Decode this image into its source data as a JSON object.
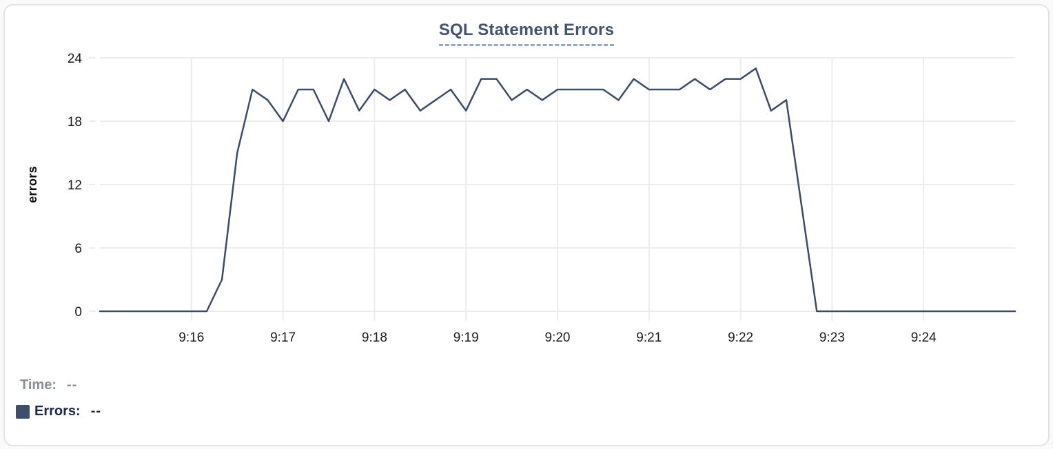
{
  "card": {
    "title": "SQL Statement Errors"
  },
  "legend": {
    "time_label": "Time:",
    "time_value": "--",
    "errors_label": "Errors:",
    "errors_value": "--"
  },
  "colors": {
    "page_bg": "#fafafa",
    "card_bg": "#ffffff",
    "card_border": "#e3e3e6",
    "title": "#44536e",
    "title_underline": "#9aa6bf",
    "grid": "#ececee",
    "axis_text": "#1b1b1d",
    "line": "#3b4c6a",
    "swatch": "#3e4f6a",
    "legend_time": "#8a8e96",
    "legend_errors": "#1c2646"
  },
  "chart_data": {
    "type": "line",
    "title": "SQL Statement Errors",
    "xlabel": "",
    "ylabel": "errors",
    "ylim": [
      0,
      24
    ],
    "yticks": [
      0,
      6,
      12,
      18,
      24
    ],
    "xticks": [
      "9:16",
      "9:17",
      "9:18",
      "9:19",
      "9:20",
      "9:21",
      "9:22",
      "9:23",
      "9:24"
    ],
    "x_range": [
      "9:15:00",
      "9:25:00"
    ],
    "grid": true,
    "legend_position": "bottom-left",
    "series": [
      {
        "name": "Errors",
        "color": "#3b4c6a",
        "times": [
          "9:15:00",
          "9:15:10",
          "9:15:20",
          "9:15:30",
          "9:15:40",
          "9:15:50",
          "9:16:00",
          "9:16:10",
          "9:16:20",
          "9:16:30",
          "9:16:40",
          "9:16:50",
          "9:17:00",
          "9:17:10",
          "9:17:20",
          "9:17:30",
          "9:17:40",
          "9:17:50",
          "9:18:00",
          "9:18:10",
          "9:18:20",
          "9:18:30",
          "9:18:40",
          "9:18:50",
          "9:19:00",
          "9:19:10",
          "9:19:20",
          "9:19:30",
          "9:19:40",
          "9:19:50",
          "9:20:00",
          "9:20:10",
          "9:20:20",
          "9:20:30",
          "9:20:40",
          "9:20:50",
          "9:21:00",
          "9:21:10",
          "9:21:20",
          "9:21:30",
          "9:21:40",
          "9:21:50",
          "9:22:00",
          "9:22:10",
          "9:22:20",
          "9:22:30",
          "9:22:40",
          "9:22:50",
          "9:23:00",
          "9:23:10",
          "9:23:20",
          "9:23:30",
          "9:23:40",
          "9:23:50",
          "9:24:00",
          "9:24:10",
          "9:24:20",
          "9:24:30",
          "9:24:40",
          "9:24:50",
          "9:25:00"
        ],
        "values": [
          0,
          0,
          0,
          0,
          0,
          0,
          0,
          0,
          3,
          15,
          21,
          20,
          18,
          21,
          21,
          18,
          22,
          19,
          21,
          20,
          21,
          19,
          20,
          21,
          19,
          22,
          22,
          20,
          21,
          20,
          21,
          21,
          21,
          21,
          20,
          22,
          21,
          21,
          21,
          22,
          21,
          22,
          22,
          23,
          19,
          20,
          10,
          0,
          0,
          0,
          0,
          0,
          0,
          0,
          0,
          0,
          0,
          0,
          0,
          0,
          0
        ]
      }
    ]
  }
}
